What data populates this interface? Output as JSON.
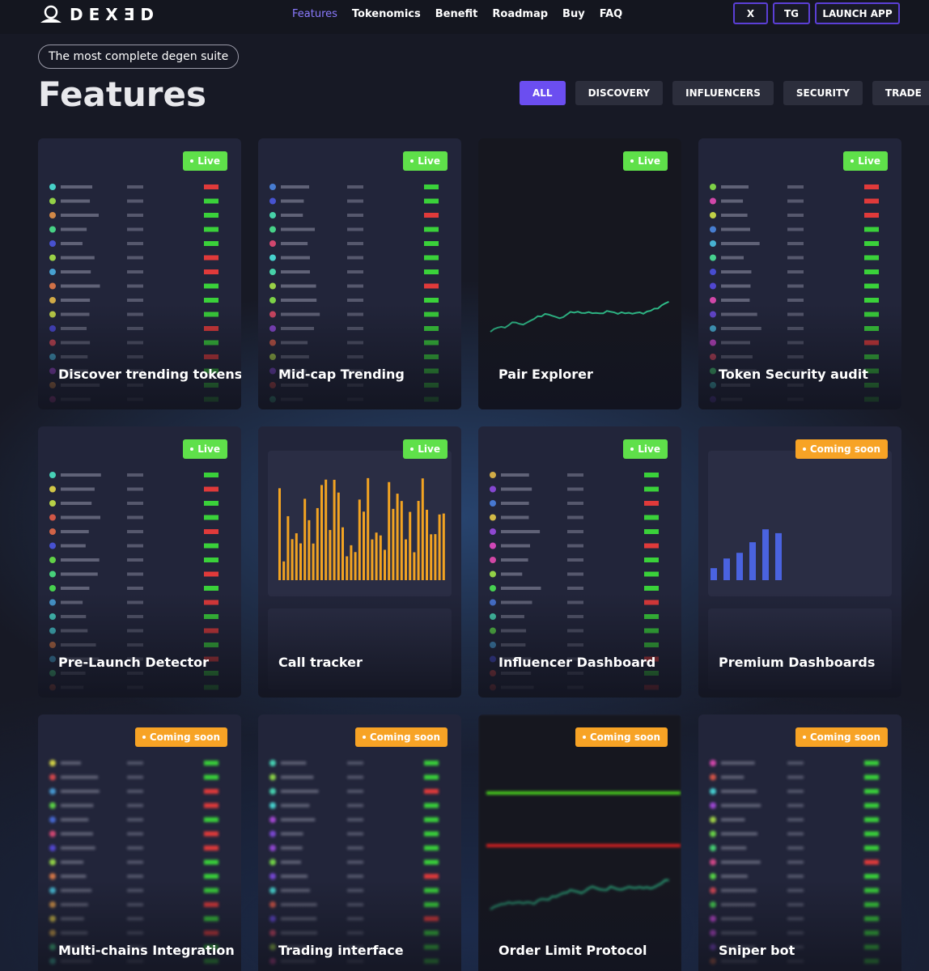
{
  "header": {
    "logo": "DEXƎD",
    "nav": [
      "Features",
      "Tokenomics",
      "Benefit",
      "Roadmap",
      "Buy",
      "FAQ"
    ],
    "buttons": [
      "X",
      "TG",
      "LAUNCH APP"
    ]
  },
  "hero": {
    "tagline": "The most complete degen suite",
    "title": "Features",
    "filters": [
      "ALL",
      "DISCOVERY",
      "INFLUENCERS",
      "SECURITY",
      "TRADE"
    ]
  },
  "cards": [
    {
      "title": "Discover trending tokens",
      "status": "Live"
    },
    {
      "title": "Mid-cap Trending",
      "status": "Live"
    },
    {
      "title": "Pair Explorer",
      "status": "Live"
    },
    {
      "title": "Token Security audit",
      "status": "Live"
    },
    {
      "title": "Pre-Launch Detector",
      "status": "Live"
    },
    {
      "title": "Call tracker",
      "status": "Live"
    },
    {
      "title": "Influencer Dashboard",
      "status": "Live"
    },
    {
      "title": "Premium Dashboards",
      "status": "Coming soon"
    },
    {
      "title": "Multi-chains Integration",
      "status": "Coming soon"
    },
    {
      "title": "Trading interface",
      "status": "Coming soon"
    },
    {
      "title": "Order Limit Protocol",
      "status": "Coming soon"
    },
    {
      "title": "Sniper bot",
      "status": "Coming soon"
    }
  ]
}
